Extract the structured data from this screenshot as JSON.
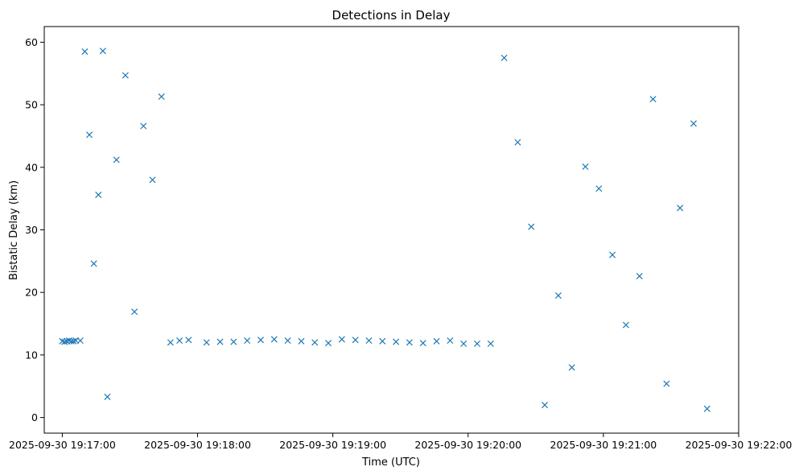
{
  "chart_data": {
    "type": "scatter",
    "title": "Detections in Delay",
    "xlabel": "Time (UTC)",
    "ylabel": "Bistatic Delay (km)",
    "marker": "x",
    "color": "#1f77b4",
    "grid": false,
    "legend": "none",
    "xlim": [
      "2025-09-30 19:16:52",
      "2025-09-30 19:22:00"
    ],
    "ylim": [
      -2.5,
      62.5
    ],
    "x_ticks": [
      "2025-09-30 19:17:00",
      "2025-09-30 19:18:00",
      "2025-09-30 19:19:00",
      "2025-09-30 19:20:00",
      "2025-09-30 19:21:00",
      "2025-09-30 19:22:00"
    ],
    "y_ticks": [
      0,
      10,
      20,
      30,
      40,
      50,
      60
    ],
    "series": [
      {
        "values_note": "",
        "x": [
          "2025-09-30 19:17:00",
          "2025-09-30 19:17:01",
          "2025-09-30 19:17:02",
          "2025-09-30 19:17:03",
          "2025-09-30 19:17:04",
          "2025-09-30 19:17:05",
          "2025-09-30 19:17:06",
          "2025-09-30 19:17:08",
          "2025-09-30 19:17:10",
          "2025-09-30 19:17:12",
          "2025-09-30 19:17:14",
          "2025-09-30 19:17:16",
          "2025-09-30 19:17:18",
          "2025-09-30 19:17:20",
          "2025-09-30 19:17:24",
          "2025-09-30 19:17:28",
          "2025-09-30 19:17:32",
          "2025-09-30 19:17:36",
          "2025-09-30 19:17:40",
          "2025-09-30 19:17:44",
          "2025-09-30 19:17:48",
          "2025-09-30 19:17:52",
          "2025-09-30 19:17:56",
          "2025-09-30 19:18:04",
          "2025-09-30 19:18:10",
          "2025-09-30 19:18:16",
          "2025-09-30 19:18:22",
          "2025-09-30 19:18:28",
          "2025-09-30 19:18:34",
          "2025-09-30 19:18:40",
          "2025-09-30 19:18:46",
          "2025-09-30 19:18:52",
          "2025-09-30 19:18:58",
          "2025-09-30 19:19:04",
          "2025-09-30 19:19:10",
          "2025-09-30 19:19:16",
          "2025-09-30 19:19:22",
          "2025-09-30 19:19:28",
          "2025-09-30 19:19:34",
          "2025-09-30 19:19:40",
          "2025-09-30 19:19:46",
          "2025-09-30 19:19:52",
          "2025-09-30 19:19:58",
          "2025-09-30 19:20:04",
          "2025-09-30 19:20:10",
          "2025-09-30 19:20:16",
          "2025-09-30 19:20:22",
          "2025-09-30 19:20:28",
          "2025-09-30 19:20:34",
          "2025-09-30 19:20:40",
          "2025-09-30 19:20:46",
          "2025-09-30 19:20:52",
          "2025-09-30 19:20:58",
          "2025-09-30 19:21:04",
          "2025-09-30 19:21:10",
          "2025-09-30 19:21:16",
          "2025-09-30 19:21:22",
          "2025-09-30 19:21:28",
          "2025-09-30 19:21:34",
          "2025-09-30 19:21:40",
          "2025-09-30 19:21:46"
        ],
        "y": [
          12.2,
          12.1,
          12.2,
          12.3,
          12.2,
          12.2,
          12.3,
          12.3,
          58.5,
          45.2,
          24.6,
          35.6,
          58.6,
          3.3,
          41.2,
          54.7,
          16.9,
          46.6,
          38.0,
          51.3,
          12.0,
          12.3,
          12.4,
          12.0,
          12.1,
          12.1,
          12.3,
          12.4,
          12.5,
          12.3,
          12.2,
          12.0,
          11.9,
          12.5,
          12.4,
          12.3,
          12.2,
          12.1,
          12.0,
          11.9,
          12.2,
          12.3,
          11.8,
          11.8,
          11.8,
          57.5,
          44.0,
          30.5,
          2.0,
          19.5,
          8.0,
          40.1,
          36.6,
          26.0,
          14.8,
          22.6,
          50.9,
          5.4,
          33.5,
          47.0,
          1.4
        ]
      }
    ]
  }
}
